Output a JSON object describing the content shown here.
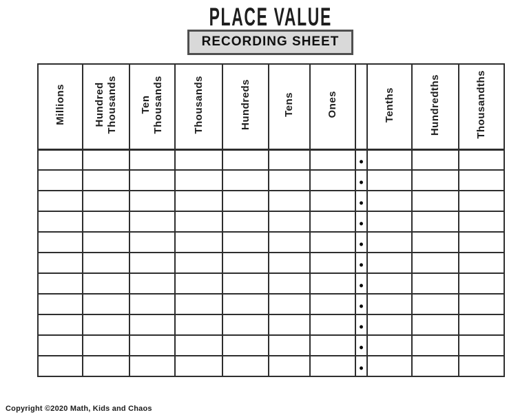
{
  "page": {
    "title": "PLACE VALUE",
    "subtitle": "RECORDING SHEET",
    "copyright": "Copyright ©2020 Math, Kids and Chaos"
  },
  "colors": {
    "ink": "#1e1e1e",
    "grid_line": "#2e2e2e",
    "subtitle_box_fill": "#d9d9d9",
    "subtitle_box_border": "#4f4f4f",
    "background": "#ffffff"
  },
  "table": {
    "columns": [
      {
        "id": "millions",
        "label": "Millions"
      },
      {
        "id": "hundred-thousands",
        "label": "Hundred\nThousands"
      },
      {
        "id": "ten-thousands",
        "label": "Ten\nThousands"
      },
      {
        "id": "thousands",
        "label": "Thousands"
      },
      {
        "id": "hundreds",
        "label": "Hundreds"
      },
      {
        "id": "tens",
        "label": "Tens"
      },
      {
        "id": "ones",
        "label": "Ones"
      },
      {
        "id": "decimal-point",
        "label": ""
      },
      {
        "id": "tenths",
        "label": "Tenths"
      },
      {
        "id": "hundredths",
        "label": "Hundredths"
      },
      {
        "id": "thousandths",
        "label": "Thousandths"
      }
    ],
    "decimal_separator": "•",
    "row_count": 11,
    "cell_default_value": ""
  }
}
